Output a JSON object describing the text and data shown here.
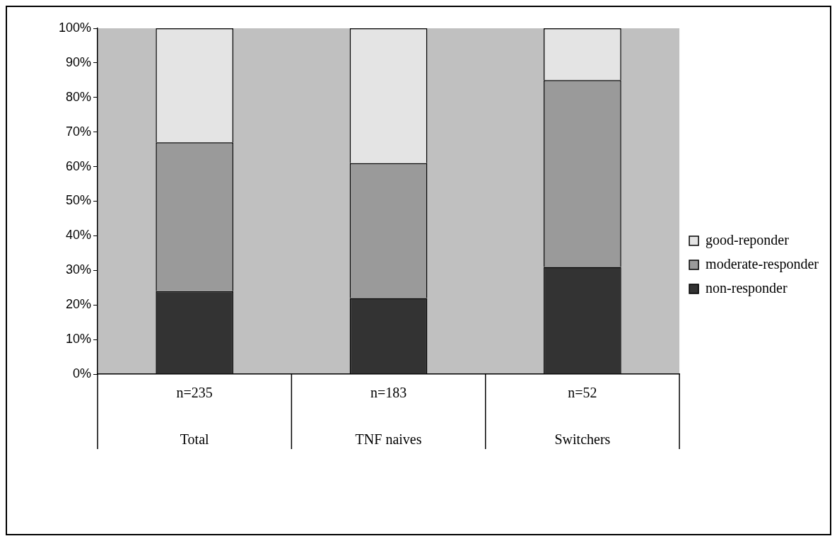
{
  "chart_data": {
    "type": "bar",
    "stacked": true,
    "categories": [
      "Total",
      "TNF naives",
      "Switchers"
    ],
    "series": [
      {
        "name": "non-responder",
        "color": "#333333",
        "values": [
          24,
          22,
          31
        ]
      },
      {
        "name": "moderate-responder",
        "color": "#9a9a9a",
        "values": [
          43,
          39,
          54
        ]
      },
      {
        "name": "good-reponder",
        "color": "#e4e4e4",
        "values": [
          33,
          39,
          15
        ]
      }
    ],
    "ylim": [
      0,
      100
    ],
    "yticks": [
      {
        "value": 0,
        "label": "0%"
      },
      {
        "value": 10,
        "label": "10%"
      },
      {
        "value": 20,
        "label": "20%"
      },
      {
        "value": 30,
        "label": "30%"
      },
      {
        "value": 40,
        "label": "40%"
      },
      {
        "value": 50,
        "label": "50%"
      },
      {
        "value": 60,
        "label": "60%"
      },
      {
        "value": 70,
        "label": "70%"
      },
      {
        "value": 80,
        "label": "80%"
      },
      {
        "value": 90,
        "label": "90%"
      },
      {
        "value": 100,
        "label": "100%"
      }
    ],
    "legend": "right",
    "annotations": [
      "n=235",
      "n=183",
      "n=52"
    ]
  }
}
